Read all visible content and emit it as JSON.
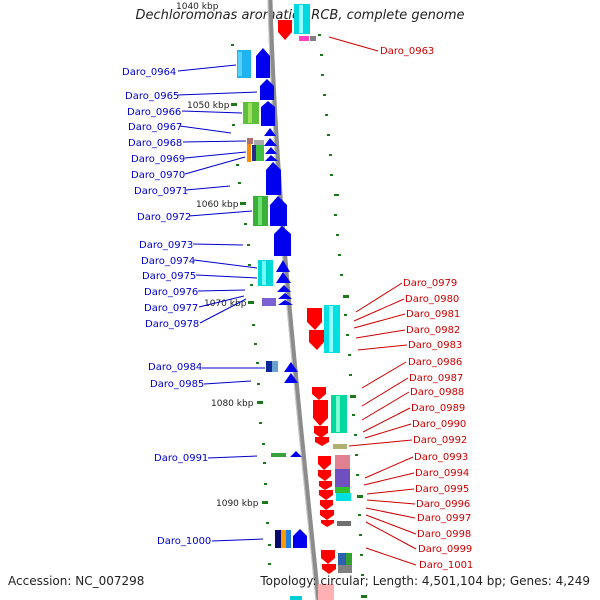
{
  "title": "Dechloromonas aromatica RCB, complete genome",
  "accession": "Accession: NC_007298",
  "topology": "Topology: circular; Length: 4,501,104 bp; Genes: 4,249",
  "kbp_markers": [
    "1040 kbp",
    "1050 kbp",
    "1060 kbp",
    "1070 kbp",
    "1080 kbp",
    "1090 kbp"
  ],
  "left_genes": [
    "Daro_0964",
    "Daro_0965",
    "Daro_0966",
    "Daro_0967",
    "Daro_0968",
    "Daro_0969",
    "Daro_0970",
    "Daro_0971",
    "Daro_0972",
    "Daro_0973",
    "Daro_0974",
    "Daro_0975",
    "Daro_0976",
    "Daro_0977",
    "Daro_0978",
    "Daro_0984",
    "Daro_0985",
    "Daro_0991",
    "Daro_1000"
  ],
  "right_genes": [
    "Daro_0963",
    "Daro_0979",
    "Daro_0980",
    "Daro_0981",
    "Daro_0982",
    "Daro_0983",
    "Daro_0986",
    "Daro_0987",
    "Daro_0988",
    "Daro_0989",
    "Daro_0990",
    "Daro_0992",
    "Daro_0993",
    "Daro_0994",
    "Daro_0995",
    "Daro_0996",
    "Daro_0997",
    "Daro_0998",
    "Daro_0999",
    "Daro_1001"
  ],
  "colors": {
    "forward_strand": "#0000ee",
    "reverse_strand": "#ff0000",
    "left_label": "#0000cc",
    "right_label": "#cc0000",
    "backbone": "#8c8c8c",
    "tick": "#1a7a1a"
  }
}
